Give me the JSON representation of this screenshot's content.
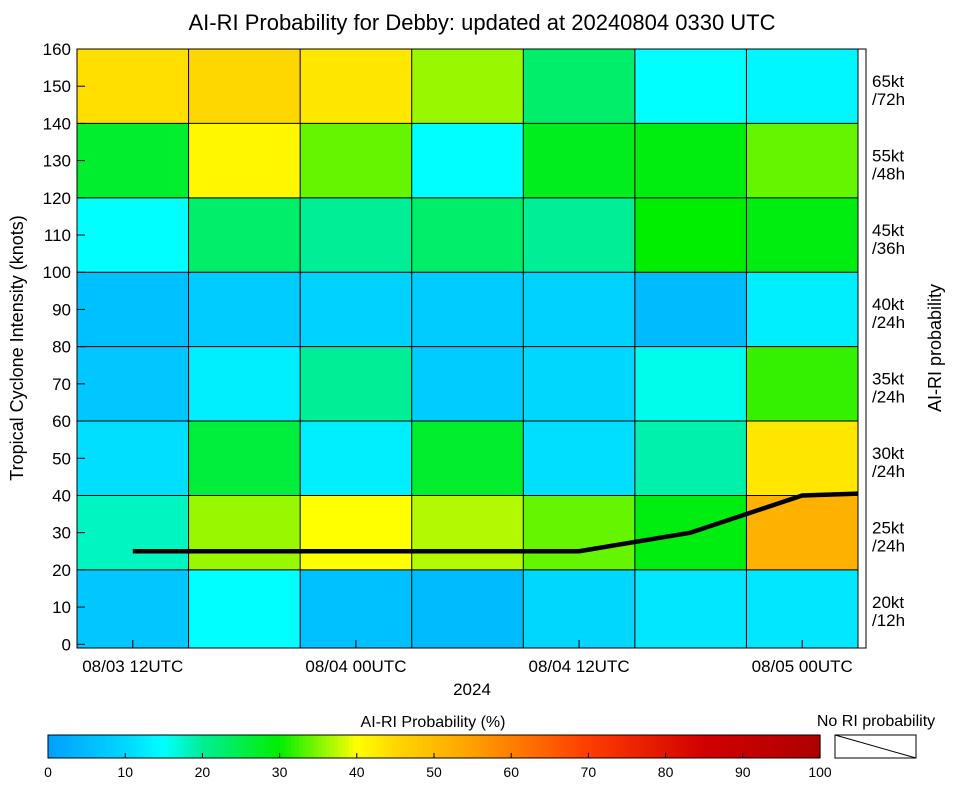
{
  "chart_data": {
    "type": "heatmap",
    "title": "AI-RI Probability for Debby: updated at 20240804 0330 UTC",
    "xlabel": "2024",
    "ylabel": "Tropical Cyclone Intensity (knots)",
    "right_label": "AI-RI probability",
    "x_tick_labels": [
      "08/03 12UTC",
      "08/04 00UTC",
      "08/04 12UTC",
      "08/05 00UTC"
    ],
    "x_tick_columns": [
      0.5,
      2.5,
      4.5,
      6.5
    ],
    "y_ticks": [
      0,
      10,
      20,
      30,
      40,
      50,
      60,
      70,
      80,
      90,
      100,
      110,
      120,
      130,
      140,
      150,
      160
    ],
    "ylim": [
      -1,
      160
    ],
    "columns": 7,
    "row_bounds": [
      -1,
      20,
      40,
      60,
      80,
      100,
      120,
      140,
      160
    ],
    "row_labels": [
      {
        "kt": "20kt",
        "h": "/12h"
      },
      {
        "kt": "25kt",
        "h": "/24h"
      },
      {
        "kt": "30kt",
        "h": "/24h"
      },
      {
        "kt": "35kt",
        "h": "/24h"
      },
      {
        "kt": "40kt",
        "h": "/24h"
      },
      {
        "kt": "45kt",
        "h": "/36h"
      },
      {
        "kt": "55kt",
        "h": "/48h"
      },
      {
        "kt": "65kt",
        "h": "/72h"
      }
    ],
    "values": [
      [
        7,
        15,
        6,
        5,
        10,
        12,
        12
      ],
      [
        18,
        36,
        40,
        37,
        34,
        29,
        52
      ],
      [
        11,
        26,
        13,
        27,
        11,
        19,
        43
      ],
      [
        7,
        13,
        20,
        8,
        10,
        16,
        32
      ],
      [
        6,
        8,
        9,
        8,
        9,
        5,
        13
      ],
      [
        15,
        23,
        20,
        23,
        20,
        30,
        29
      ],
      [
        27,
        41,
        34,
        15,
        28,
        29,
        34
      ],
      [
        44,
        45,
        43,
        36,
        23,
        15,
        14
      ]
    ],
    "intensity_line": {
      "name": "",
      "x_columns": [
        0.5,
        1.5,
        2.5,
        3.5,
        4.5,
        5.5,
        6.5,
        7.0
      ],
      "y": [
        25,
        25,
        25,
        25,
        25,
        30,
        40,
        40.5
      ]
    },
    "colorbar": {
      "label": "AI-RI Probability (%)",
      "ticks": [
        0,
        10,
        20,
        30,
        40,
        50,
        60,
        70,
        80,
        90,
        100
      ],
      "no_ri_label": "No RI probability"
    },
    "grid": true
  }
}
